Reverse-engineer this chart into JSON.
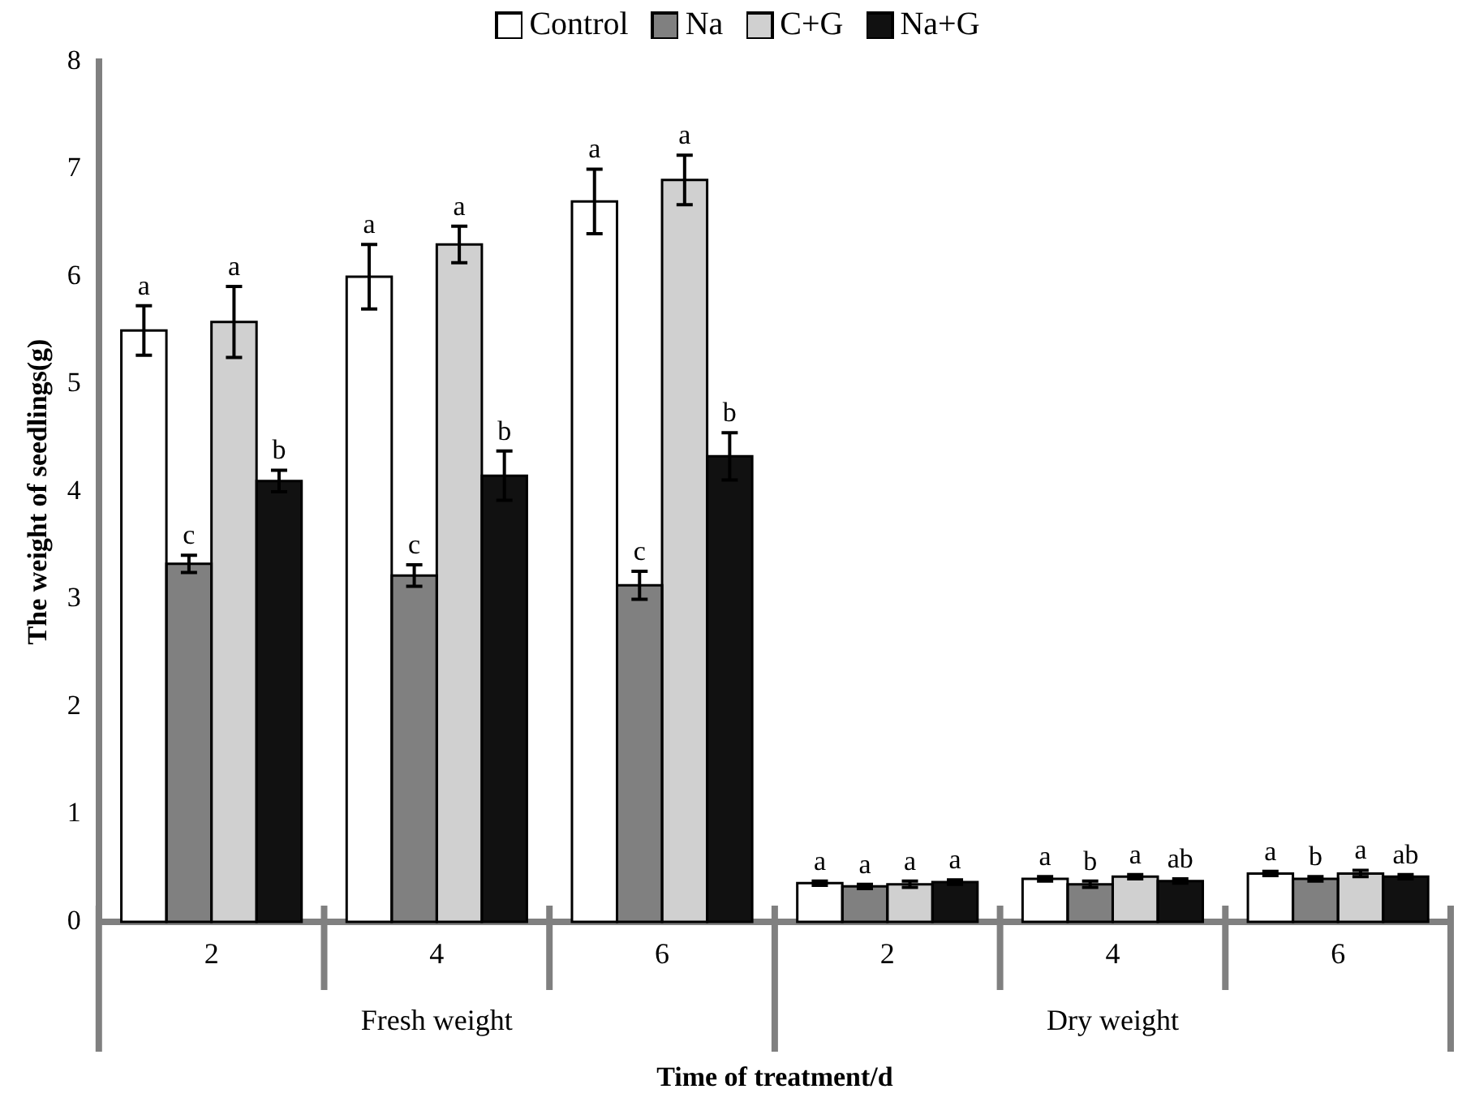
{
  "chart_data": {
    "type": "bar",
    "xlabel": "Time of treatment/d",
    "ylabel": "The weight of seedlings(g)",
    "categories": [
      "2",
      "4",
      "6",
      "2",
      "4",
      "6"
    ],
    "annotations": [
      "Fresh weight",
      "Dry weight"
    ],
    "ylim": [
      0,
      8
    ],
    "yticks": [
      0,
      1,
      2,
      3,
      4,
      5,
      6,
      7,
      8
    ],
    "grid": false,
    "legend": "top",
    "series": [
      {
        "name": "Control",
        "color": "#ffffff",
        "values": [
          5.5,
          6.0,
          6.7,
          0.36,
          0.4,
          0.45
        ],
        "errors": [
          0.23,
          0.3,
          0.3,
          0.02,
          0.02,
          0.02
        ],
        "value_labels": [
          "a",
          "a",
          "a",
          "a",
          "a",
          "a"
        ]
      },
      {
        "name": "Na",
        "color": "#808080",
        "values": [
          3.33,
          3.22,
          3.13,
          0.33,
          0.35,
          0.4
        ],
        "errors": [
          0.08,
          0.1,
          0.13,
          0.02,
          0.03,
          0.02
        ],
        "value_labels": [
          "c",
          "c",
          "c",
          "a",
          "b",
          "b"
        ]
      },
      {
        "name": "C+G",
        "color": "#d0d0d0",
        "values": [
          5.58,
          6.3,
          6.9,
          0.35,
          0.42,
          0.45
        ],
        "errors": [
          0.33,
          0.17,
          0.23,
          0.03,
          0.02,
          0.03
        ],
        "value_labels": [
          "a",
          "a",
          "a",
          "a",
          "a",
          "a"
        ]
      },
      {
        "name": "Na+G",
        "color": "#111111",
        "values": [
          4.1,
          4.15,
          4.33,
          0.37,
          0.38,
          0.42
        ],
        "errors": [
          0.1,
          0.23,
          0.22,
          0.02,
          0.02,
          0.02
        ],
        "value_labels": [
          "b",
          "b",
          "b",
          "a",
          "ab",
          "ab"
        ]
      }
    ]
  }
}
